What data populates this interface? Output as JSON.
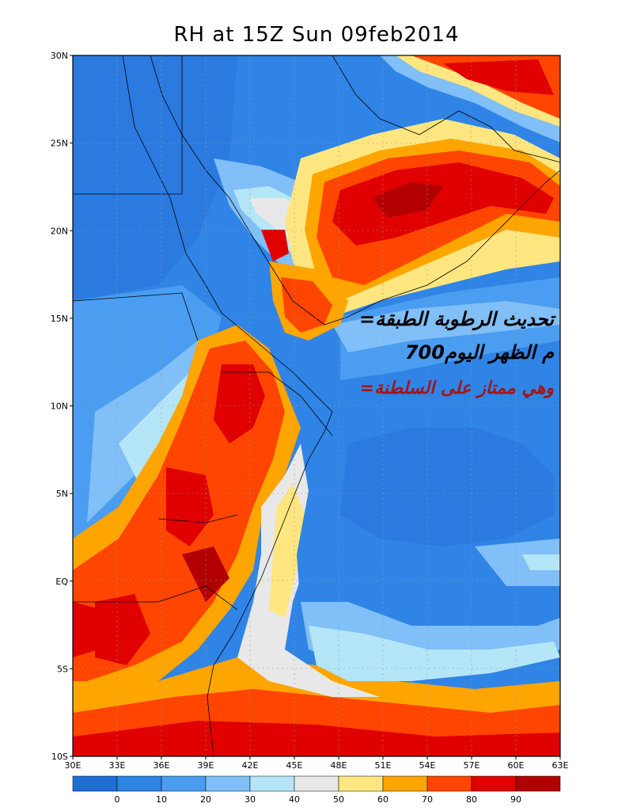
{
  "title": "RH at 15Z Sun 09feb2014",
  "lat_labels": [
    "30N",
    "25N",
    "20N",
    "15N",
    "10N",
    "5N",
    "EQ",
    "5S",
    "10S"
  ],
  "lon_labels": [
    "30E",
    "33E",
    "36E",
    "39E",
    "42E",
    "45E",
    "48E",
    "51E",
    "54E",
    "57E",
    "60E",
    "63E"
  ],
  "colorbar": {
    "labels": [
      "0",
      "10",
      "20",
      "30",
      "40",
      "50",
      "60",
      "70",
      "80",
      "90"
    ],
    "colors": [
      "#1e6ed4",
      "#2f84e6",
      "#4a9df0",
      "#80bff7",
      "#b4e6f8",
      "#e8e8e8",
      "#ffe680",
      "#ffa500",
      "#ff4500",
      "#e00000",
      "#b20000"
    ]
  },
  "annotations": [
    {
      "text": "=تحديث الرطوبة الطبقة",
      "color": "#000000"
    },
    {
      "text": "700م الظهر اليوم",
      "color": "#000000"
    },
    {
      "text": "=وهي ممتاز على السلطنة",
      "color": "#a31515"
    }
  ]
}
